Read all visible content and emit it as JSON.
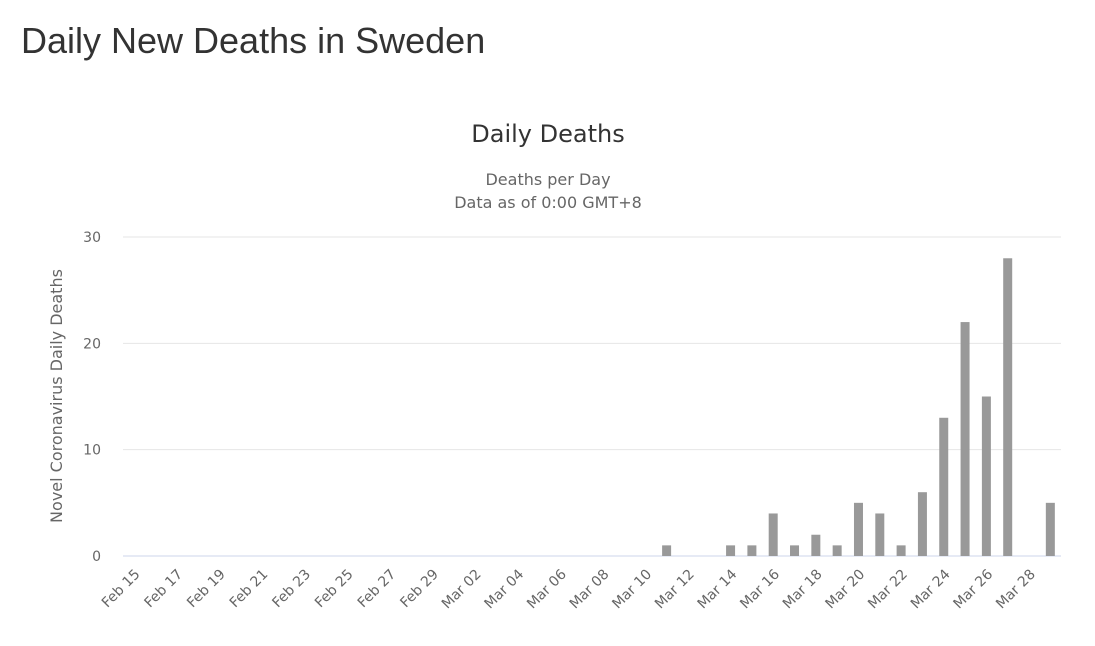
{
  "page": {
    "title": "Daily New Deaths in Sweden"
  },
  "chart_data": {
    "type": "bar",
    "title": "Daily Deaths",
    "subtitle_lines": [
      "Deaths per Day",
      "Data as of 0:00 GMT+8"
    ],
    "xlabel": "",
    "ylabel": "Novel Coronavirus Daily Deaths",
    "ylim": [
      0,
      30
    ],
    "yticks": [
      0,
      10,
      20,
      30
    ],
    "grid": true,
    "bar_color": "#999999",
    "categories": [
      "Feb 15",
      "Feb 16",
      "Feb 17",
      "Feb 18",
      "Feb 19",
      "Feb 20",
      "Feb 21",
      "Feb 22",
      "Feb 23",
      "Feb 24",
      "Feb 25",
      "Feb 26",
      "Feb 27",
      "Feb 28",
      "Feb 29",
      "Mar 01",
      "Mar 02",
      "Mar 03",
      "Mar 04",
      "Mar 05",
      "Mar 06",
      "Mar 07",
      "Mar 08",
      "Mar 09",
      "Mar 10",
      "Mar 11",
      "Mar 12",
      "Mar 13",
      "Mar 14",
      "Mar 15",
      "Mar 16",
      "Mar 17",
      "Mar 18",
      "Mar 19",
      "Mar 20",
      "Mar 21",
      "Mar 22",
      "Mar 23",
      "Mar 24",
      "Mar 25",
      "Mar 26",
      "Mar 27",
      "Mar 28",
      "Mar 29"
    ],
    "values": [
      0,
      0,
      0,
      0,
      0,
      0,
      0,
      0,
      0,
      0,
      0,
      0,
      0,
      0,
      0,
      0,
      0,
      0,
      0,
      0,
      0,
      0,
      0,
      0,
      0,
      1,
      0,
      0,
      1,
      1,
      4,
      1,
      2,
      1,
      5,
      4,
      1,
      6,
      13,
      22,
      15,
      28,
      0,
      5
    ],
    "xtick_labels": [
      "Feb 15",
      "Feb 17",
      "Feb 19",
      "Feb 21",
      "Feb 23",
      "Feb 25",
      "Feb 27",
      "Feb 29",
      "Mar 02",
      "Mar 04",
      "Mar 06",
      "Mar 08",
      "Mar 10",
      "Mar 12",
      "Mar 14",
      "Mar 16",
      "Mar 18",
      "Mar 20",
      "Mar 22",
      "Mar 24",
      "Mar 26",
      "Mar 28"
    ]
  }
}
